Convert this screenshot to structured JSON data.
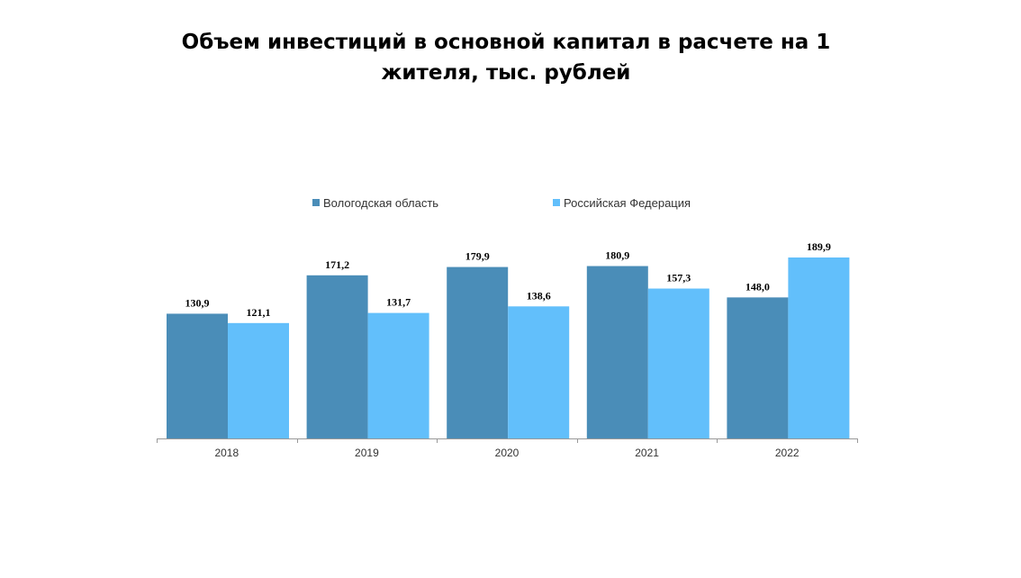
{
  "chart_data": {
    "type": "bar",
    "title_lines": [
      "Объем инвестиций в основной капитал в расчете на 1",
      "жителя, тыс. рублей"
    ],
    "categories": [
      "2018",
      "2019",
      "2020",
      "2021",
      "2022"
    ],
    "series": [
      {
        "name": "Вологодская область",
        "color": "#4a8db8",
        "values": [
          130.9,
          171.2,
          179.9,
          180.9,
          148.0
        ],
        "labels": [
          "130,9",
          "171,2",
          "179,9",
          "180,9",
          "148,0"
        ]
      },
      {
        "name": "Российская Федерация",
        "color": "#62bffb",
        "values": [
          121.1,
          131.7,
          138.6,
          157.3,
          189.9
        ],
        "labels": [
          "121,1",
          "131,7",
          "138,6",
          "157,3",
          "189,9"
        ]
      }
    ],
    "ylim": [
      0,
      189.9
    ],
    "grid": false,
    "legend_position": "top"
  }
}
